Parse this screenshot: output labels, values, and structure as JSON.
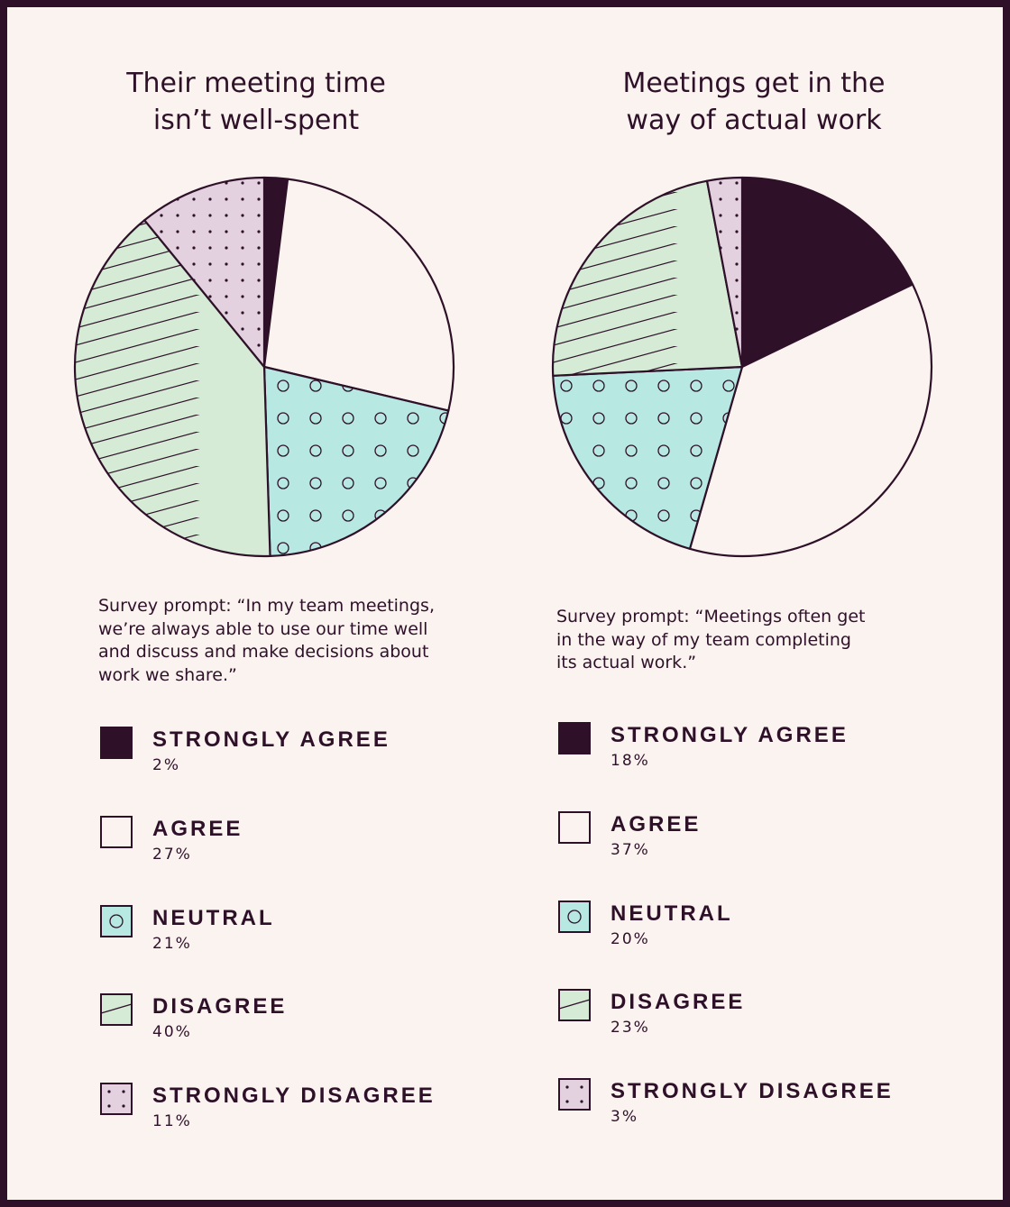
{
  "colors": {
    "background": "#fbf3ef",
    "border": "#2e1129",
    "strongly_agree": "#2e1129",
    "agree": "#fbf3ef",
    "neutral": "#b7e8e2",
    "disagree": "#d5ebd6",
    "strongly_disagree": "#e3d1df",
    "ink": "#2e1129"
  },
  "chart_data": [
    {
      "type": "pie",
      "title": "Their meeting time\nisn’t well-spent",
      "prompt": "Survey prompt: “In my team meetings,\nwe’re always able to use our time well\nand discuss and make decisions about\nwork we share.”",
      "categories": [
        "STRONGLY AGREE",
        "AGREE",
        "NEUTRAL",
        "DISAGREE",
        "STRONGLY DISAGREE"
      ],
      "values": [
        2,
        27,
        21,
        40,
        11
      ],
      "labels": [
        "2%",
        "27%",
        "21%",
        "40%",
        "11%"
      ],
      "patterns": [
        "solid",
        "plain",
        "circles",
        "stripes",
        "dots"
      ],
      "legend_position": "bottom"
    },
    {
      "type": "pie",
      "title": "Meetings get in the\nway of actual work",
      "prompt": "Survey prompt: “Meetings often get\nin the way of my team completing\nits actual work.”",
      "categories": [
        "STRONGLY AGREE",
        "AGREE",
        "NEUTRAL",
        "DISAGREE",
        "STRONGLY DISAGREE"
      ],
      "values": [
        18,
        37,
        20,
        23,
        3
      ],
      "labels": [
        "18%",
        "37%",
        "20%",
        "23%",
        "3%"
      ],
      "patterns": [
        "solid",
        "plain",
        "circles",
        "stripes",
        "dots"
      ],
      "legend_position": "bottom"
    }
  ]
}
